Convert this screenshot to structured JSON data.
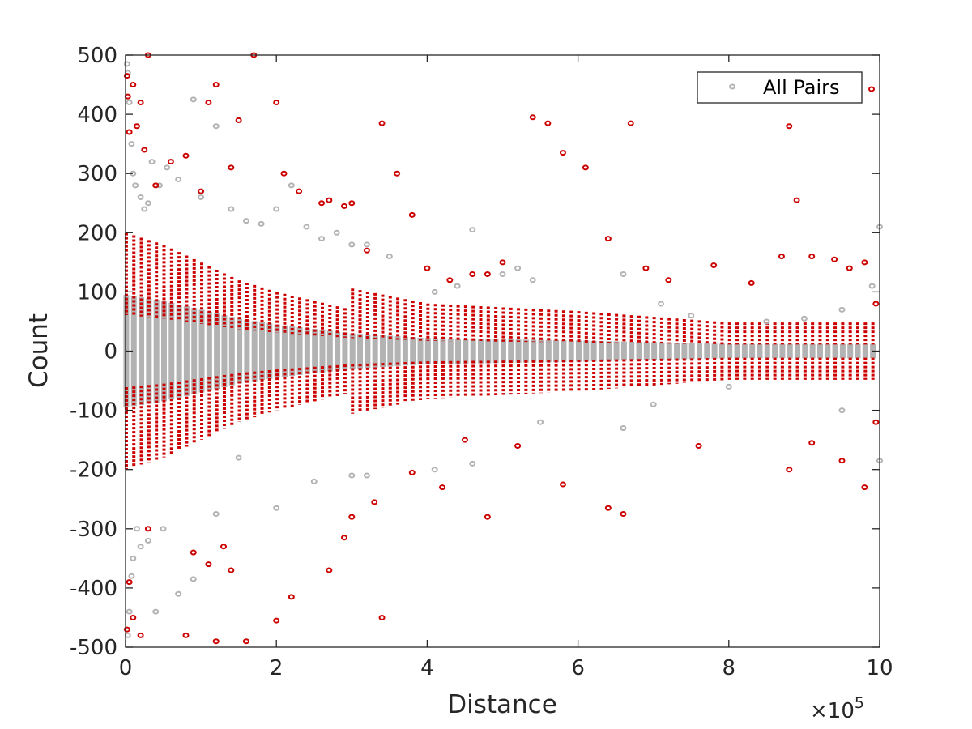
{
  "chart_data": {
    "type": "scatter",
    "xlabel": "Distance",
    "ylabel": "Count",
    "x_multiplier_label": "×10",
    "x_multiplier_exponent": "5",
    "x_scale_factor": 100000,
    "xlim": [
      0,
      10
    ],
    "ylim": [
      -500,
      500
    ],
    "xticks": [
      0,
      2,
      4,
      6,
      8,
      10
    ],
    "xtick_labels": [
      "0",
      "2",
      "4",
      "6",
      "8",
      "10"
    ],
    "yticks": [
      500,
      400,
      300,
      200,
      100,
      0,
      -100,
      -200,
      -300,
      -400,
      -500
    ],
    "ytick_labels": [
      "500",
      "400",
      "300",
      "200",
      "100",
      "0",
      "-100",
      "-200",
      "-300",
      "-400",
      "-500"
    ],
    "grid": false,
    "legend_position": "top-right",
    "legend": {
      "label": "All Pairs",
      "color": "#b3b3b3",
      "second_marker_color": "#cc0000"
    },
    "band_envelope": {
      "x": [
        0,
        0.5,
        1,
        1.5,
        2,
        3,
        4,
        5,
        6,
        7,
        8,
        9,
        10
      ],
      "half_width": [
        95,
        85,
        70,
        55,
        45,
        30,
        22,
        20,
        18,
        15,
        12,
        12,
        12
      ]
    },
    "series": [
      {
        "name": "All Pairs",
        "color": "#b3b3b3",
        "x": [
          0.02,
          0.03,
          0.05,
          0.08,
          0.1,
          0.13,
          0.2,
          0.25,
          0.3,
          0.35,
          0.45,
          0.55,
          0.7,
          0.9,
          1.0,
          1.2,
          1.4,
          1.6,
          1.8,
          2.0,
          2.2,
          2.4,
          2.6,
          2.8,
          3.0,
          3.2,
          3.5,
          4.1,
          4.4,
          4.6,
          5.0,
          5.2,
          5.4,
          6.6,
          7.1,
          7.5,
          8.5,
          9.0,
          9.5,
          9.9,
          10.0,
          0.03,
          0.05,
          0.08,
          0.1,
          0.15,
          0.2,
          0.3,
          0.4,
          0.5,
          0.7,
          0.9,
          1.2,
          1.5,
          2.0,
          2.5,
          3.0,
          3.2,
          4.1,
          4.6,
          5.5,
          6.6,
          7.0,
          8.0,
          9.5,
          10.0
        ],
        "y": [
          485,
          470,
          420,
          350,
          300,
          280,
          260,
          240,
          250,
          320,
          280,
          310,
          290,
          425,
          260,
          380,
          240,
          220,
          215,
          240,
          280,
          210,
          190,
          200,
          180,
          180,
          160,
          100,
          110,
          205,
          130,
          140,
          120,
          130,
          80,
          60,
          50,
          55,
          70,
          110,
          210,
          -480,
          -440,
          -380,
          -350,
          -300,
          -330,
          -320,
          -440,
          -300,
          -410,
          -385,
          -275,
          -180,
          -265,
          -220,
          -210,
          -210,
          -200,
          -190,
          -120,
          -130,
          -90,
          -60,
          -100,
          -185
        ]
      },
      {
        "name": "",
        "color": "#cc0000",
        "x": [
          0.02,
          0.03,
          0.1,
          0.2,
          0.3,
          0.15,
          0.05,
          0.25,
          0.4,
          0.6,
          0.8,
          1.0,
          1.1,
          1.2,
          1.4,
          1.5,
          1.7,
          2.0,
          2.1,
          2.3,
          2.6,
          2.7,
          2.9,
          3.0,
          3.2,
          3.4,
          3.6,
          3.8,
          4.0,
          4.3,
          4.6,
          4.8,
          5.0,
          5.4,
          5.6,
          5.8,
          6.1,
          6.4,
          6.7,
          6.9,
          7.2,
          7.8,
          8.3,
          8.7,
          8.8,
          8.9,
          9.1,
          9.4,
          9.6,
          9.8,
          9.95,
          0.02,
          0.1,
          0.2,
          0.3,
          0.05,
          0.8,
          0.9,
          1.1,
          1.2,
          1.3,
          1.4,
          1.6,
          2.0,
          2.2,
          2.7,
          2.9,
          3.0,
          3.3,
          3.4,
          3.8,
          4.2,
          4.5,
          4.8,
          5.2,
          5.8,
          6.4,
          6.6,
          7.6,
          8.8,
          9.1,
          9.5,
          9.8,
          9.95
        ],
        "y": [
          465,
          430,
          450,
          420,
          500,
          380,
          370,
          340,
          280,
          320,
          330,
          270,
          420,
          450,
          310,
          390,
          500,
          420,
          300,
          270,
          250,
          255,
          245,
          250,
          170,
          385,
          300,
          230,
          140,
          120,
          130,
          130,
          150,
          395,
          385,
          335,
          310,
          190,
          385,
          140,
          120,
          145,
          115,
          160,
          380,
          255,
          160,
          155,
          140,
          150,
          80,
          -470,
          -450,
          -480,
          -300,
          -390,
          -480,
          -340,
          -360,
          -490,
          -330,
          -370,
          -490,
          -455,
          -415,
          -370,
          -315,
          -280,
          -255,
          -450,
          -205,
          -230,
          -150,
          -280,
          -160,
          -225,
          -265,
          -275,
          -160,
          -200,
          -155,
          -185,
          -230,
          -120
        ]
      }
    ]
  }
}
